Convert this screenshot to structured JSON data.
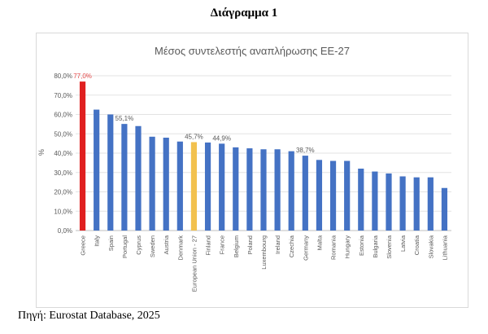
{
  "heading": "Διάγραμμα 1",
  "source": "Πηγή: Eurostat Database, 2025",
  "colors": {
    "default": "#4472C4",
    "highlight_red": "#E02020",
    "highlight_gold": "#F2C14E",
    "label_red": "#E34A4A",
    "grid": "#e3e3e3",
    "text": "#595959"
  },
  "chart_data": {
    "type": "bar",
    "title": "Μέσος συντελεστής αναπλήρωσης ΕΕ-27",
    "ylabel": "%",
    "xlabel": "",
    "ylim": [
      0,
      80
    ],
    "yticks": [
      "0,0%",
      "10,0%",
      "20,0%",
      "30,0%",
      "40,0%",
      "50,0%",
      "60,0%",
      "70,0%",
      "80,0%"
    ],
    "grid": true,
    "categories": [
      "Greece",
      "Italy",
      "Spain",
      "Portugal",
      "Cyprus",
      "Sweden",
      "Austria",
      "Denmark",
      "European Union - 27",
      "Finland",
      "France",
      "Belgium",
      "Poland",
      "Luxembourg",
      "Ireland",
      "Czechia",
      "Germany",
      "Malta",
      "Romania",
      "Hungary",
      "Estonia",
      "Bulgaria",
      "Slovenia",
      "Latvia",
      "Croatia",
      "Slovakia",
      "Lithuania"
    ],
    "values": [
      77.0,
      62.5,
      60.0,
      55.1,
      54.0,
      48.5,
      48.0,
      46.0,
      45.7,
      45.5,
      44.9,
      43.0,
      42.5,
      42.0,
      42.0,
      41.0,
      38.7,
      36.5,
      36.0,
      36.0,
      32.0,
      30.5,
      29.5,
      28.0,
      27.5,
      27.5,
      22.0
    ],
    "highlights": {
      "Greece": "highlight_red",
      "European Union - 27": "highlight_gold"
    },
    "data_labels": [
      {
        "category": "Greece",
        "text": "77,0%",
        "color": "label_red"
      },
      {
        "category": "Portugal",
        "text": "55,1%",
        "color": "text"
      },
      {
        "category": "European Union - 27",
        "text": "45,7%",
        "color": "text"
      },
      {
        "category": "France",
        "text": "44,9%",
        "color": "text"
      },
      {
        "category": "Germany",
        "text": "38,7%",
        "color": "text"
      }
    ]
  }
}
